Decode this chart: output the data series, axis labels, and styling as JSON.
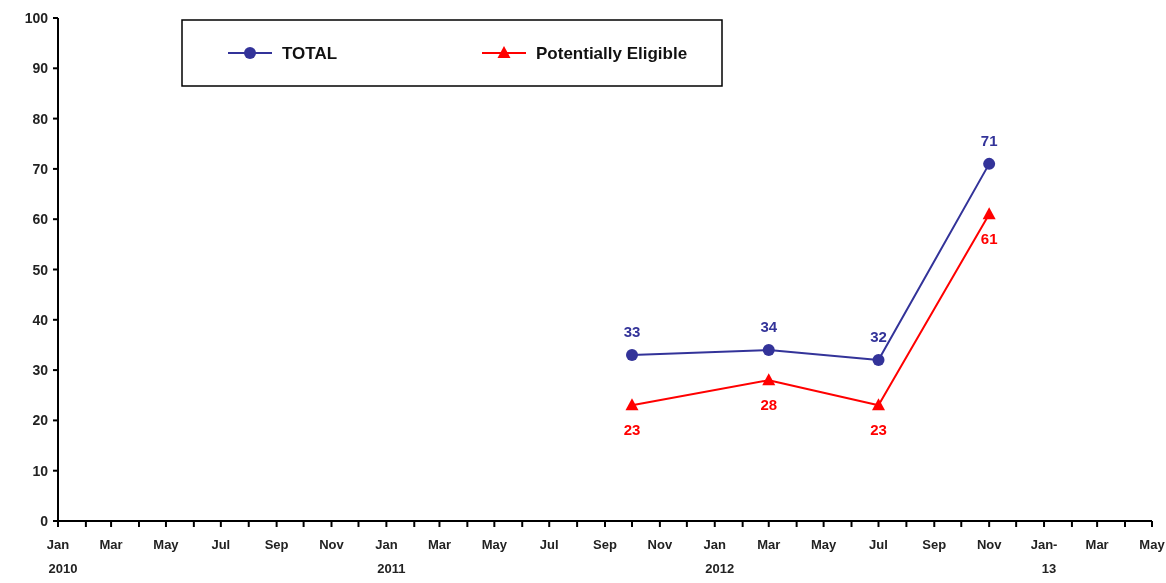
{
  "chart_data": {
    "type": "line",
    "x": [
      "2011-10",
      "2012-03",
      "2012-07",
      "2012-11"
    ],
    "series": [
      {
        "name": "TOTAL",
        "color": "#333399",
        "marker": "circle",
        "values": [
          33,
          34,
          32,
          71
        ]
      },
      {
        "name": "Potentially Eligible",
        "color": "#ff0000",
        "marker": "triangle",
        "values": [
          23,
          28,
          23,
          61
        ]
      }
    ],
    "ylim": [
      0,
      100
    ],
    "yticks": [
      0,
      10,
      20,
      30,
      40,
      50,
      60,
      70,
      80,
      90,
      100
    ],
    "xlim": [
      "2010-01",
      "2013-05"
    ],
    "xticks": [
      {
        "value": "2010-01",
        "label": "Jan\n2010"
      },
      {
        "value": "2010-02",
        "label": null
      },
      {
        "value": "2010-03",
        "label": "Mar"
      },
      {
        "value": "2010-04",
        "label": null
      },
      {
        "value": "2010-05",
        "label": "May"
      },
      {
        "value": "2010-06",
        "label": null
      },
      {
        "value": "2010-07",
        "label": "Jul"
      },
      {
        "value": "2010-08",
        "label": null
      },
      {
        "value": "2010-09",
        "label": "Sep"
      },
      {
        "value": "2010-10",
        "label": null
      },
      {
        "value": "2010-11",
        "label": "Nov"
      },
      {
        "value": "2010-12",
        "label": null
      },
      {
        "value": "2011-01",
        "label": "Jan\n2011"
      },
      {
        "value": "2011-02",
        "label": null
      },
      {
        "value": "2011-03",
        "label": "Mar"
      },
      {
        "value": "2011-04",
        "label": null
      },
      {
        "value": "2011-05",
        "label": "May"
      },
      {
        "value": "2011-06",
        "label": null
      },
      {
        "value": "2011-07",
        "label": "Jul"
      },
      {
        "value": "2011-08",
        "label": null
      },
      {
        "value": "2011-09",
        "label": "Sep"
      },
      {
        "value": "2011-10",
        "label": null
      },
      {
        "value": "2011-11",
        "label": "Nov"
      },
      {
        "value": "2011-12",
        "label": null
      },
      {
        "value": "2012-01",
        "label": "Jan\n2012"
      },
      {
        "value": "2012-02",
        "label": null
      },
      {
        "value": "2012-03",
        "label": "Mar"
      },
      {
        "value": "2012-04",
        "label": null
      },
      {
        "value": "2012-05",
        "label": "May"
      },
      {
        "value": "2012-06",
        "label": null
      },
      {
        "value": "2012-07",
        "label": "Jul"
      },
      {
        "value": "2012-08",
        "label": null
      },
      {
        "value": "2012-09",
        "label": "Sep"
      },
      {
        "value": "2012-10",
        "label": null
      },
      {
        "value": "2012-11",
        "label": "Nov"
      },
      {
        "value": "2012-12",
        "label": null
      },
      {
        "value": "2013-01",
        "label": "Jan-\n13"
      },
      {
        "value": "2013-02",
        "label": null
      },
      {
        "value": "2013-03",
        "label": "Mar"
      },
      {
        "value": "2013-04",
        "label": null
      },
      {
        "value": "2013-05",
        "label": "May"
      }
    ],
    "grid": false,
    "legend": "top left",
    "data_labels": true,
    "line_style": "solid"
  }
}
